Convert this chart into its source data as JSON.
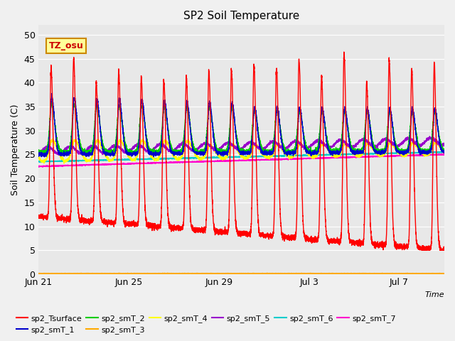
{
  "title": "SP2 Soil Temperature",
  "ylabel": "Soil Temperature (C)",
  "xlabel": "Time",
  "ylim": [
    0,
    52
  ],
  "yticks": [
    0,
    5,
    10,
    15,
    20,
    25,
    30,
    35,
    40,
    45,
    50
  ],
  "fig_bg": "#f0f0f0",
  "plot_bg": "#e8e8e8",
  "series_colors": {
    "sp2_Tsurface": "#ff0000",
    "sp2_smT_1": "#0000cc",
    "sp2_smT_2": "#00cc00",
    "sp2_smT_3": "#ffaa00",
    "sp2_smT_4": "#ffff00",
    "sp2_smT_5": "#9900cc",
    "sp2_smT_6": "#00cccc",
    "sp2_smT_7": "#ff00cc"
  },
  "tz_label": "TZ_osu",
  "tz_bg": "#ffff99",
  "tz_border": "#cc8800",
  "tz_text_color": "#cc0000",
  "x_tick_labels": [
    "Jun 21",
    "Jun 25",
    "Jun 29",
    "Jul 3",
    "Jul 7"
  ],
  "x_tick_positions": [
    0,
    4,
    8,
    12,
    16
  ],
  "num_days": 18,
  "pts_per_day": 288
}
